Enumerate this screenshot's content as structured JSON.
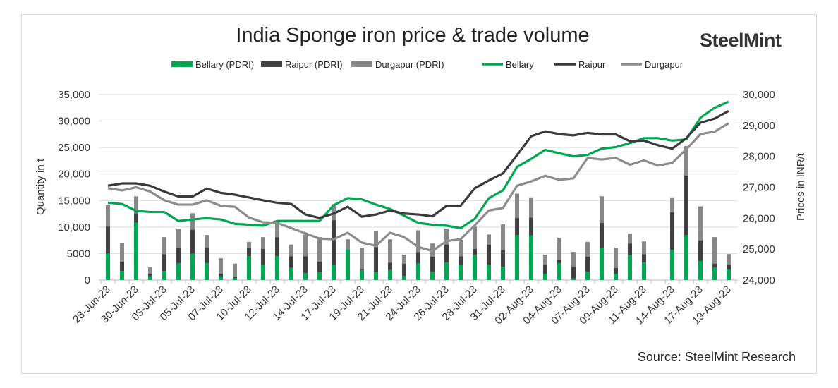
{
  "title": "India Sponge iron price & trade volume",
  "logo": "SteelMint",
  "source": "Source: SteelMint Research",
  "chart_data": {
    "type": "bar+line",
    "title": "India Sponge iron price & trade volume",
    "ylabel": "Quantity in t",
    "y2label": "Prices in INR/t",
    "ylim": [
      0,
      35000
    ],
    "y2lim": [
      24000,
      30000
    ],
    "yticks": [
      "0",
      "5000",
      "10,000",
      "15,000",
      "20,000",
      "25,000",
      "30,000",
      "35,000"
    ],
    "y2ticks": [
      "24,000",
      "25,000",
      "26,000",
      "27,000",
      "28,000",
      "29,000",
      "30,000"
    ],
    "grid": true,
    "legend": "top",
    "categories": [
      "28-Jun-23",
      "",
      "30-Jun-23",
      "",
      "03-Jul-23",
      "",
      "05-Jul-23",
      "",
      "07-Jul-23",
      "",
      "10-Jul-23",
      "",
      "12-Jul-23",
      "",
      "14-Jul-23",
      "",
      "17-Jul-23",
      "",
      "19-Jul-23",
      "",
      "21-Jul-23",
      "",
      "24-Jul-23",
      "",
      "26-Jul-23",
      "",
      "28-Jul-23",
      "",
      "31-Jul-23",
      "",
      "02-Aug-23",
      "",
      "04-Aug-23",
      "",
      "07-Aug-23",
      "",
      "09-Aug-23",
      "",
      "11-Aug-23",
      "",
      "14-Aug-23",
      "",
      "17-Aug-23",
      "",
      "19-Aug-23"
    ],
    "bars": [
      {
        "name": "Bellary (PDRI)",
        "color": "#00a651",
        "values": [
          5000,
          1700,
          10800,
          700,
          1700,
          3200,
          5000,
          3200,
          700,
          400,
          4500,
          2800,
          4500,
          2300,
          1300,
          1500,
          2800,
          5800,
          1900,
          1500,
          1900,
          800,
          3100,
          1600,
          3300,
          2800,
          4800,
          2900,
          2500,
          8500,
          8400,
          1200,
          3200,
          300,
          1600,
          6000,
          1200,
          4700,
          3300,
          0,
          5700,
          8500,
          3600,
          2400,
          2000
        ]
      },
      {
        "name": "Raipur (PDRI)",
        "color": "#404040",
        "values": [
          5100,
          1800,
          1800,
          500,
          3200,
          2800,
          4500,
          2900,
          500,
          300,
          1500,
          3100,
          3600,
          2200,
          3200,
          2000,
          8500,
          0,
          200,
          4700,
          1400,
          2300,
          2200,
          2800,
          3400,
          1700,
          1100,
          3800,
          3100,
          3200,
          3400,
          1700,
          700,
          2200,
          2800,
          4800,
          1100,
          2200,
          1600,
          0,
          7100,
          11200,
          3900,
          700,
          900
        ]
      },
      {
        "name": "Durgapur (PDRI)",
        "color": "#878787",
        "values": [
          4100,
          3500,
          3200,
          1200,
          3200,
          3600,
          3100,
          2400,
          2900,
          2400,
          1200,
          2200,
          2800,
          2200,
          4100,
          4600,
          3000,
          1900,
          4000,
          3100,
          4400,
          1700,
          4100,
          2500,
          3000,
          3100,
          4200,
          1900,
          4900,
          4600,
          3800,
          1900,
          4100,
          2800,
          2800,
          5000,
          3800,
          1900,
          2400,
          0,
          2800,
          5600,
          6400,
          5000,
          2000
        ]
      }
    ],
    "lines": [
      {
        "name": "Bellary",
        "color": "#00a651",
        "values": [
          26500,
          26460,
          26240,
          26200,
          26200,
          25910,
          25960,
          26000,
          25960,
          25820,
          25790,
          25760,
          25910,
          25910,
          25910,
          25910,
          26420,
          26650,
          26610,
          26440,
          26300,
          26080,
          25850,
          25790,
          25760,
          25680,
          25980,
          26650,
          26900,
          27660,
          27920,
          28210,
          28100,
          28000,
          28050,
          28250,
          28300,
          28430,
          28590,
          28590,
          28510,
          28550,
          29250,
          29570,
          29770
        ]
      },
      {
        "name": "Raipur",
        "color": "#3a3a3a",
        "values": [
          27050,
          27125,
          27125,
          27050,
          26860,
          26700,
          26700,
          26960,
          26820,
          26760,
          26670,
          26580,
          26500,
          26460,
          26120,
          26010,
          26150,
          26370,
          26050,
          26120,
          26250,
          26150,
          26120,
          26060,
          26400,
          26400,
          26970,
          27220,
          27450,
          28040,
          28650,
          28810,
          28720,
          28680,
          28760,
          28710,
          28710,
          28490,
          28510,
          28360,
          28250,
          28590,
          29090,
          29220,
          29470
        ]
      },
      {
        "name": "Durgapur",
        "color": "#8c8c8c",
        "values": [
          26970,
          26900,
          27000,
          26860,
          26580,
          26440,
          26440,
          26580,
          26400,
          26370,
          26020,
          25870,
          25850,
          25680,
          25510,
          25340,
          25320,
          25530,
          25210,
          25110,
          25530,
          25390,
          25070,
          24940,
          25260,
          25320,
          25770,
          26250,
          26330,
          27050,
          27190,
          27370,
          27240,
          27290,
          27950,
          27900,
          27950,
          27730,
          27870,
          27700,
          27790,
          28230,
          28720,
          28800,
          29070
        ]
      }
    ]
  }
}
